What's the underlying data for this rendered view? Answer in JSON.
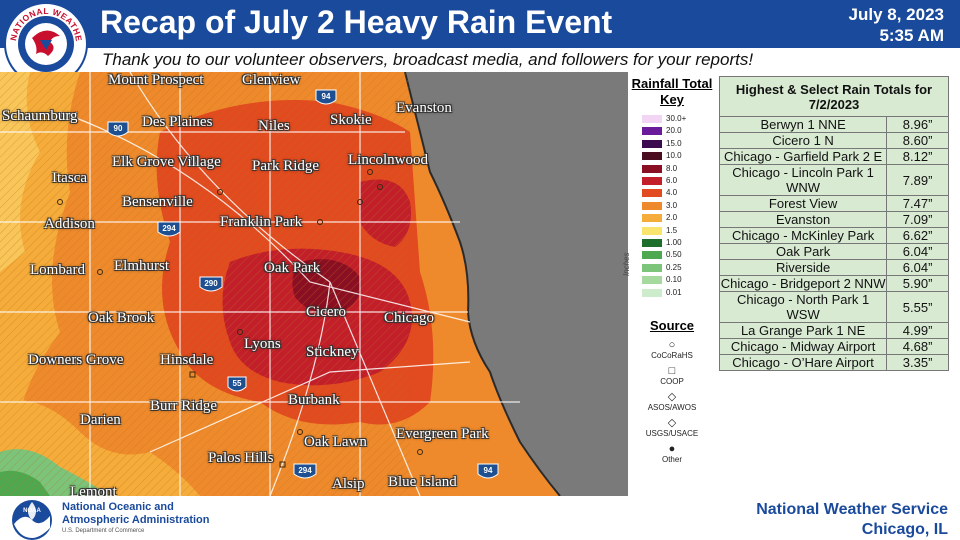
{
  "header": {
    "title": "Recap of July 2 Heavy Rain Event",
    "date": "July 8, 2023",
    "time": "5:35 AM",
    "seal_text": "NATIONAL WEATHER SERVICE",
    "background_color": "#1a4a9b"
  },
  "subtitle": "Thank you to our volunteer observers, broadcast media, and followers for your reports!",
  "map": {
    "lake_color": "#7a7a7a",
    "cities": [
      "Mount Prospect",
      "Glenview",
      "Evanston",
      "Schaumburg",
      "Des Plaines",
      "Niles",
      "Skokie",
      "Elk Grove Village",
      "Park Ridge",
      "Lincolnwood",
      "Itasca",
      "Bensenville",
      "Franklin Park",
      "Addison",
      "Lombard",
      "Elmhurst",
      "Oak Park",
      "Oak Brook",
      "Cicero",
      "Chicago",
      "Lyons",
      "Stickney",
      "Downers Grove",
      "Hinsdale",
      "Burr Ridge",
      "Burbank",
      "Darien",
      "Oak Lawn",
      "Evergreen Park",
      "Palos Hills",
      "Alsip",
      "Blue Island",
      "Lemont"
    ],
    "highway_shields": [
      "90",
      "94",
      "294",
      "290",
      "55",
      "294",
      "94"
    ]
  },
  "key": {
    "title": "Rainfall Total Key",
    "units": "Inches",
    "entries": [
      {
        "label": "30.0+",
        "color": "#f2d5f5"
      },
      {
        "label": "20.0",
        "color": "#6a1b9a"
      },
      {
        "label": "15.0",
        "color": "#3b0a4e"
      },
      {
        "label": "10.0",
        "color": "#4a0d1f"
      },
      {
        "label": "8.0",
        "color": "#8b0f22"
      },
      {
        "label": "6.0",
        "color": "#c21f2a"
      },
      {
        "label": "4.0",
        "color": "#e24a1f"
      },
      {
        "label": "3.0",
        "color": "#ef8a2c"
      },
      {
        "label": "2.0",
        "color": "#f6ac3a"
      },
      {
        "label": "1.5",
        "color": "#f9e46e"
      },
      {
        "label": "1.00",
        "color": "#1d6e2a"
      },
      {
        "label": "0.50",
        "color": "#4ea84f"
      },
      {
        "label": "0.25",
        "color": "#7bc47a"
      },
      {
        "label": "0.10",
        "color": "#a6d99d"
      },
      {
        "label": "0.01",
        "color": "#cdeccb"
      }
    ]
  },
  "source": {
    "title": "Source",
    "items": [
      {
        "symbol": "○",
        "label": "CoCoRaHS"
      },
      {
        "symbol": "□",
        "label": "COOP"
      },
      {
        "symbol": "◇",
        "label": "ASOS/AWOS"
      },
      {
        "symbol": "◇",
        "label": "USGS/USACE"
      },
      {
        "symbol": "●",
        "label": "Other"
      }
    ]
  },
  "totals": {
    "header": "Highest & Select Rain Totals for 7/2/2023",
    "rows": [
      {
        "location": "Berwyn 1 NNE",
        "value": "8.96”"
      },
      {
        "location": "Cicero 1 N",
        "value": "8.60”"
      },
      {
        "location": "Chicago - Garfield Park 2 E",
        "value": "8.12”"
      },
      {
        "location": "Chicago - Lincoln Park 1 WNW",
        "value": "7.89”"
      },
      {
        "location": "Forest View",
        "value": "7.47”"
      },
      {
        "location": "Evanston",
        "value": "7.09”"
      },
      {
        "location": "Chicago - McKinley Park",
        "value": "6.62”"
      },
      {
        "location": "Oak Park",
        "value": "6.04”"
      },
      {
        "location": "Riverside",
        "value": "6.04”"
      },
      {
        "location": "Chicago - Bridgeport 2 NNW",
        "value": "5.90”"
      },
      {
        "location": "Chicago - North Park 1 WSW",
        "value": "5.55”"
      },
      {
        "location": "La Grange Park 1 NE",
        "value": "4.99”"
      },
      {
        "location": "Chicago - Midway Airport",
        "value": "4.68”"
      },
      {
        "location": "Chicago - O’Hare Airport",
        "value": "3.35”"
      }
    ]
  },
  "footer": {
    "noaa_logo_text": "NOAA",
    "noaa_name_line1": "National Oceanic and",
    "noaa_name_line2": "Atmospheric Administration",
    "noaa_dept": "U.S. Department of Commerce",
    "office_line1": "National Weather Service",
    "office_line2": "Chicago, IL"
  }
}
